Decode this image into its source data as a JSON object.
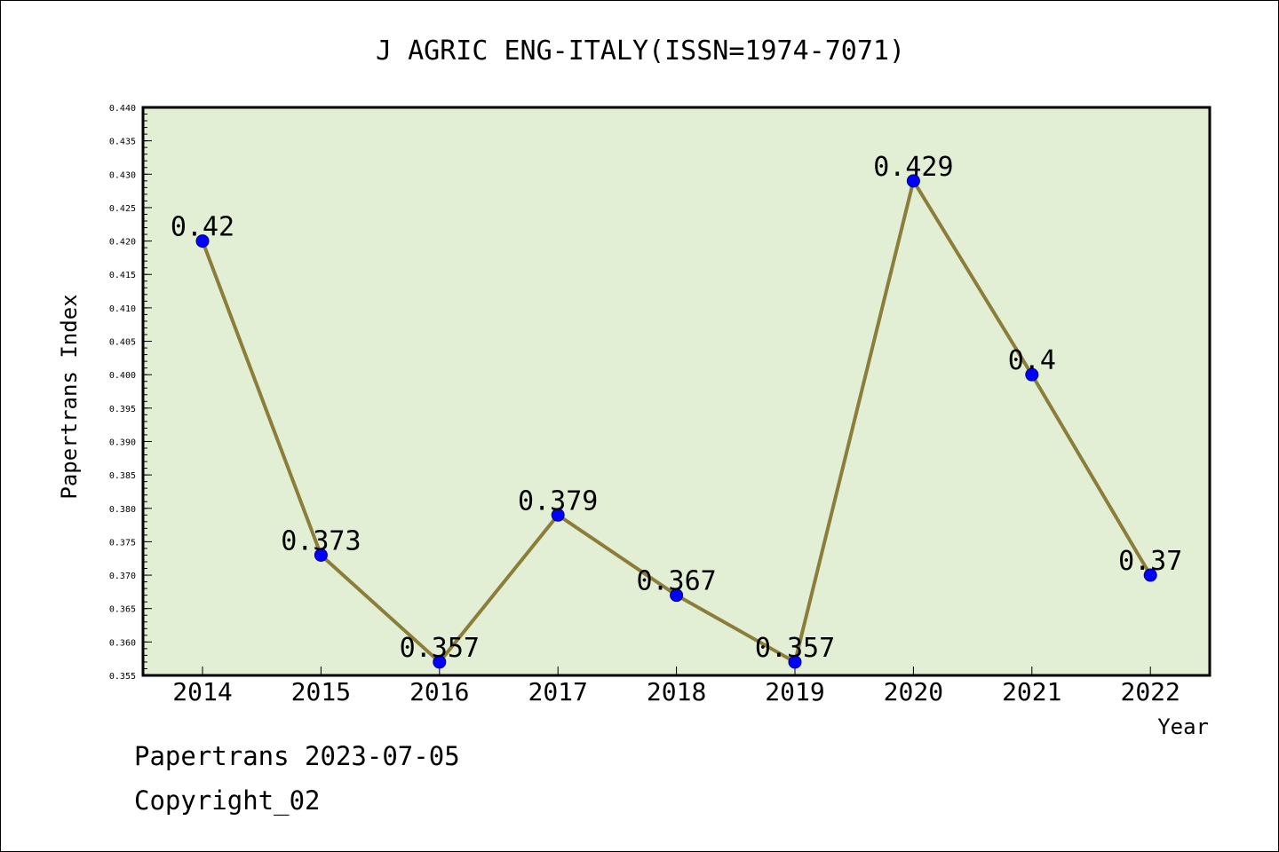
{
  "chart_data": {
    "type": "line",
    "title": "J AGRIC ENG-ITALY(ISSN=1974-7071)",
    "xlabel": "Year",
    "ylabel": "Papertrans Index",
    "categories": [
      "2014",
      "2015",
      "2016",
      "2017",
      "2018",
      "2019",
      "2020",
      "2021",
      "2022"
    ],
    "series": [
      {
        "values": [
          0.42,
          0.373,
          0.357,
          0.379,
          0.367,
          0.357,
          0.429,
          0.4,
          0.37
        ],
        "data_labels": [
          "0.42",
          "0.373",
          "0.357",
          "0.379",
          "0.367",
          "0.357",
          "0.429",
          "0.4",
          "0.37"
        ]
      }
    ],
    "ylim": [
      0.355,
      0.44
    ],
    "yticks": [
      "0.355",
      "0.360",
      "0.365",
      "0.370",
      "0.375",
      "0.380",
      "0.385",
      "0.390",
      "0.395",
      "0.400",
      "0.405",
      "0.410",
      "0.415",
      "0.420",
      "0.425",
      "0.430",
      "0.435",
      "0.440"
    ],
    "grid": false,
    "colors": {
      "plot_background": "#e2efd4",
      "line": "#8b7d3a",
      "marker_fill": "#0000ff",
      "marker_edge": "#000080"
    }
  },
  "footer": {
    "date_line": "Papertrans 2023-07-05",
    "copyright": "Copyright_02"
  }
}
